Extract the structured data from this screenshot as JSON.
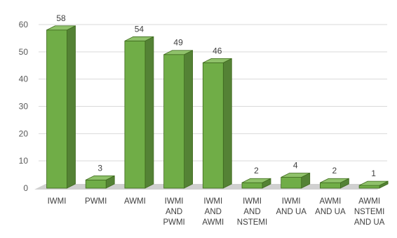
{
  "chart_data": {
    "type": "bar",
    "style": "3d-column",
    "categories": [
      [
        "IWMI"
      ],
      [
        "PWMI"
      ],
      [
        "AWMI"
      ],
      [
        "IWMI",
        "AND",
        "PWMI"
      ],
      [
        "IWMI",
        "AND",
        "AWMI"
      ],
      [
        "IWMI",
        "AND",
        "NSTEMI"
      ],
      [
        "IWMI",
        "AND UA"
      ],
      [
        "AWMI",
        "AND UA"
      ],
      [
        "AWMI",
        "NSTEMI",
        "AND UA"
      ]
    ],
    "values": [
      58,
      3,
      54,
      49,
      46,
      2,
      4,
      2,
      1
    ],
    "ylim": [
      0,
      60
    ],
    "yticks": [
      "0",
      "10",
      "20",
      "30",
      "40",
      "50",
      "60"
    ],
    "data_labels": [
      "58",
      "3",
      "54",
      "49",
      "46",
      "2",
      "4",
      "2",
      "1"
    ],
    "grid": true,
    "legend": "none",
    "colors": {
      "front": "#70ad47",
      "side": "#548235",
      "top": "#8fc16a",
      "edge": "#3f6a1e",
      "grid": "#d9d9d9",
      "floor": "#d0d0d0"
    }
  }
}
